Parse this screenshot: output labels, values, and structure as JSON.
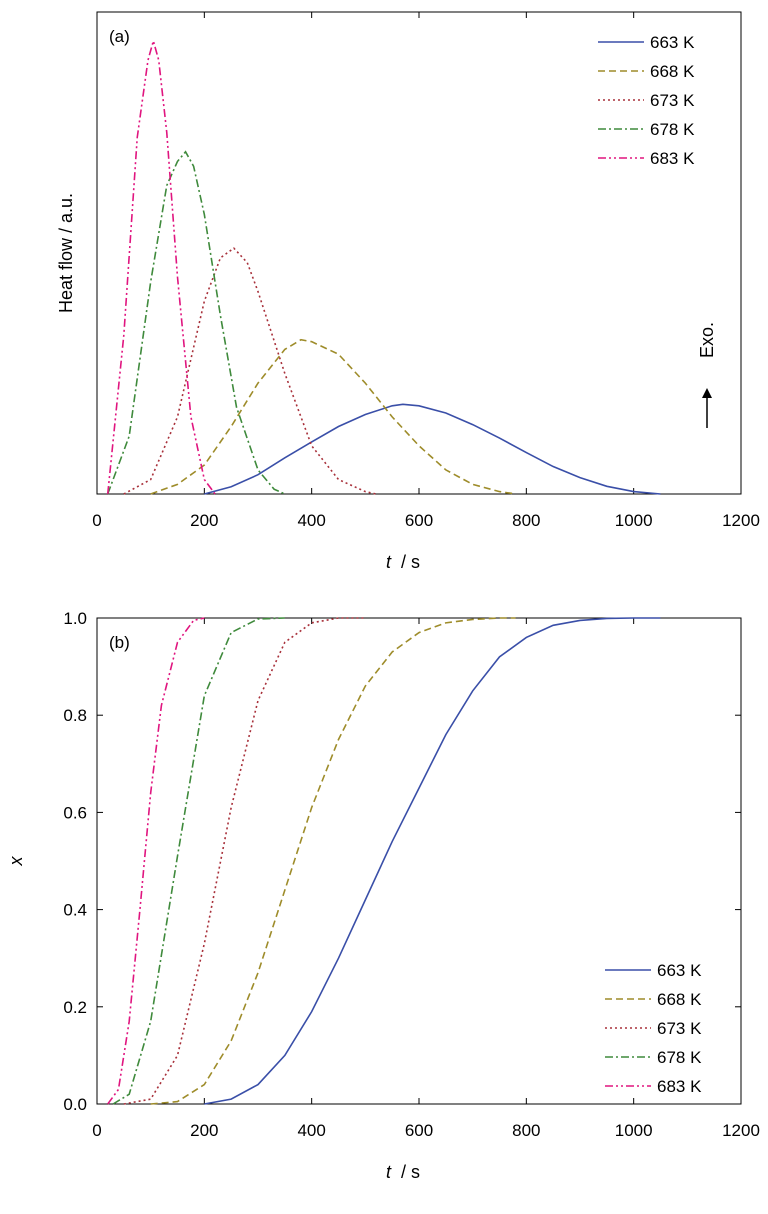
{
  "chart_data": [
    {
      "type": "line",
      "panel_label": "(a)",
      "xlabel_symbol": "t",
      "xlabel_unit": "/ s",
      "ylabel": "Heat flow / a.u.",
      "annotation": "Exo.",
      "xlim": [
        0,
        1200
      ],
      "xticks": [
        "0",
        "200",
        "400",
        "600",
        "800",
        "1000",
        "1200"
      ],
      "y_ticks_shown": false,
      "grid": false,
      "legend_position": "top-right",
      "series": [
        {
          "name": "663 K",
          "color": "#3a4fa8",
          "style": "solid",
          "x": [
            200,
            250,
            300,
            350,
            400,
            450,
            500,
            550,
            570,
            600,
            650,
            700,
            750,
            800,
            850,
            900,
            950,
            1000,
            1050
          ],
          "y": [
            0,
            0.015,
            0.04,
            0.075,
            0.108,
            0.14,
            0.165,
            0.183,
            0.186,
            0.183,
            0.168,
            0.144,
            0.116,
            0.086,
            0.057,
            0.034,
            0.016,
            0.005,
            0
          ]
        },
        {
          "name": "668 K",
          "color": "#9e8c2a",
          "style": "dashed",
          "x": [
            100,
            150,
            200,
            250,
            300,
            350,
            380,
            400,
            450,
            500,
            550,
            600,
            650,
            700,
            750,
            780
          ],
          "y": [
            0,
            0.02,
            0.06,
            0.14,
            0.23,
            0.3,
            0.32,
            0.316,
            0.29,
            0.23,
            0.16,
            0.1,
            0.05,
            0.02,
            0.005,
            0
          ]
        },
        {
          "name": "673 K",
          "color": "#a8303a",
          "style": "dotted",
          "x": [
            50,
            100,
            150,
            200,
            230,
            255,
            280,
            300,
            350,
            400,
            450,
            500,
            520
          ],
          "y": [
            0,
            0.03,
            0.16,
            0.4,
            0.49,
            0.51,
            0.48,
            0.42,
            0.25,
            0.1,
            0.03,
            0.005,
            0
          ]
        },
        {
          "name": "678 K",
          "color": "#3f8a3c",
          "style": "dashdot",
          "x": [
            20,
            60,
            100,
            130,
            150,
            165,
            180,
            200,
            230,
            260,
            300,
            330,
            350
          ],
          "y": [
            0,
            0.12,
            0.44,
            0.64,
            0.69,
            0.71,
            0.68,
            0.58,
            0.37,
            0.18,
            0.05,
            0.01,
            0
          ]
        },
        {
          "name": "683 K",
          "color": "#e0157f",
          "style": "dashdotdot",
          "x": [
            20,
            50,
            75,
            95,
            105,
            115,
            130,
            150,
            175,
            200,
            220
          ],
          "y": [
            0,
            0.33,
            0.74,
            0.9,
            0.94,
            0.9,
            0.75,
            0.45,
            0.16,
            0.03,
            0
          ]
        }
      ]
    },
    {
      "type": "line",
      "panel_label": "(b)",
      "xlabel_symbol": "t",
      "xlabel_unit": "/ s",
      "ylabel": "x",
      "xlim": [
        0,
        1200
      ],
      "ylim": [
        0,
        1
      ],
      "xticks": [
        "0",
        "200",
        "400",
        "600",
        "800",
        "1000",
        "1200"
      ],
      "yticks": [
        "0.0",
        "0.2",
        "0.4",
        "0.6",
        "0.8",
        "1.0"
      ],
      "grid": false,
      "legend_position": "bottom-right",
      "series": [
        {
          "name": "663 K",
          "color": "#3a4fa8",
          "style": "solid",
          "x": [
            200,
            250,
            300,
            350,
            400,
            450,
            500,
            550,
            600,
            650,
            700,
            750,
            800,
            850,
            900,
            950,
            1000,
            1050
          ],
          "y": [
            0,
            0.01,
            0.04,
            0.1,
            0.19,
            0.3,
            0.42,
            0.54,
            0.65,
            0.76,
            0.85,
            0.92,
            0.96,
            0.985,
            0.995,
            0.999,
            1,
            1
          ]
        },
        {
          "name": "668 K",
          "color": "#9e8c2a",
          "style": "dashed",
          "x": [
            100,
            150,
            200,
            250,
            300,
            350,
            400,
            450,
            500,
            550,
            600,
            650,
            700,
            750,
            780
          ],
          "y": [
            0,
            0.005,
            0.04,
            0.13,
            0.27,
            0.44,
            0.61,
            0.75,
            0.86,
            0.93,
            0.97,
            0.99,
            0.997,
            1,
            1
          ]
        },
        {
          "name": "673 K",
          "color": "#a8303a",
          "style": "dotted",
          "x": [
            50,
            100,
            150,
            200,
            250,
            300,
            350,
            400,
            450,
            500
          ],
          "y": [
            0,
            0.01,
            0.1,
            0.33,
            0.61,
            0.83,
            0.95,
            0.99,
            1,
            1
          ]
        },
        {
          "name": "678 K",
          "color": "#3f8a3c",
          "style": "dashdot",
          "x": [
            30,
            60,
            100,
            150,
            200,
            250,
            300,
            350
          ],
          "y": [
            0,
            0.02,
            0.17,
            0.51,
            0.84,
            0.97,
            0.998,
            1
          ]
        },
        {
          "name": "683 K",
          "color": "#e0157f",
          "style": "dashdotdot",
          "x": [
            20,
            40,
            60,
            80,
            100,
            120,
            150,
            180,
            200
          ],
          "y": [
            0,
            0.03,
            0.17,
            0.4,
            0.64,
            0.82,
            0.95,
            0.995,
            1
          ]
        }
      ]
    }
  ]
}
